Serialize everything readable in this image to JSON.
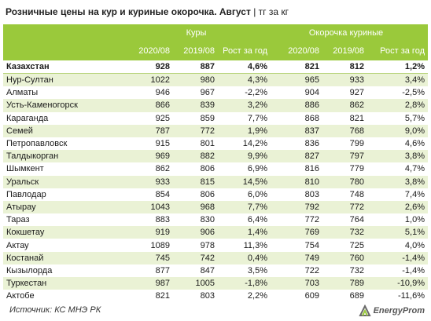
{
  "title": {
    "main": "Розничные цены на кур и куриные окорочка. Август",
    "unit": " | тг за кг"
  },
  "header": {
    "group1": "Куры",
    "group2": "Окорочка куриные",
    "cols": [
      "2020/08",
      "2019/08",
      "Рост за год",
      "2020/08",
      "2019/08",
      "Рост за год"
    ]
  },
  "rows": [
    [
      "Казахстан",
      "928",
      "887",
      "4,6%",
      "821",
      "812",
      "1,2%"
    ],
    [
      "Нур-Султан",
      "1022",
      "980",
      "4,3%",
      "965",
      "933",
      "3,4%"
    ],
    [
      "Алматы",
      "946",
      "967",
      "-2,2%",
      "904",
      "927",
      "-2,5%"
    ],
    [
      "Усть-Каменогорск",
      "866",
      "839",
      "3,2%",
      "886",
      "862",
      "2,8%"
    ],
    [
      "Караганда",
      "925",
      "859",
      "7,7%",
      "868",
      "821",
      "5,7%"
    ],
    [
      "Семей",
      "787",
      "772",
      "1,9%",
      "837",
      "768",
      "9,0%"
    ],
    [
      "Петропавловск",
      "915",
      "801",
      "14,2%",
      "836",
      "799",
      "4,6%"
    ],
    [
      "Талдыкорган",
      "969",
      "882",
      "9,9%",
      "827",
      "797",
      "3,8%"
    ],
    [
      "Шымкент",
      "862",
      "806",
      "6,9%",
      "816",
      "779",
      "4,7%"
    ],
    [
      "Уральск",
      "933",
      "815",
      "14,5%",
      "810",
      "780",
      "3,8%"
    ],
    [
      "Павлодар",
      "854",
      "806",
      "6,0%",
      "803",
      "748",
      "7,4%"
    ],
    [
      "Атырау",
      "1043",
      "968",
      "7,7%",
      "792",
      "772",
      "2,6%"
    ],
    [
      "Тараз",
      "883",
      "830",
      "6,4%",
      "772",
      "764",
      "1,0%"
    ],
    [
      "Кокшетау",
      "919",
      "906",
      "1,4%",
      "769",
      "732",
      "5,1%"
    ],
    [
      "Актау",
      "1089",
      "978",
      "11,3%",
      "754",
      "725",
      "4,0%"
    ],
    [
      "Костанай",
      "745",
      "742",
      "0,4%",
      "749",
      "760",
      "-1,4%"
    ],
    [
      "Кызылорда",
      "877",
      "847",
      "3,5%",
      "722",
      "732",
      "-1,4%"
    ],
    [
      "Туркестан",
      "987",
      "1005",
      "-1,8%",
      "703",
      "789",
      "-10,9%"
    ],
    [
      "Актобе",
      "821",
      "803",
      "2,2%",
      "609",
      "689",
      "-11,6%"
    ]
  ],
  "footer": {
    "source": "Источник: КС МНЭ РК",
    "logo_text": "EnergyProm"
  },
  "colors": {
    "header_bg": "#9ac93b",
    "stripe_bg": "#eaf2d5"
  }
}
